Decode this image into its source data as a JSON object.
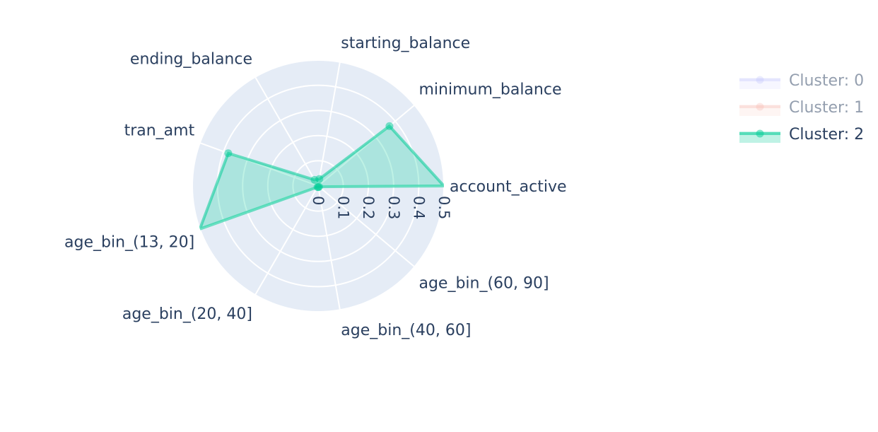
{
  "chart_data": {
    "type": "radar",
    "angular_categories": [
      "account_active",
      "minimum_balance",
      "starting_balance",
      "ending_balance",
      "tran_amt",
      "age_bin_(13, 20]",
      "age_bin_(20, 40]",
      "age_bin_(40, 60]",
      "age_bin_(60, 90]"
    ],
    "radial_range": [
      0,
      0.5
    ],
    "radial_ticks": [
      "0",
      "0.1",
      "0.2",
      "0.3",
      "0.4",
      "0.5"
    ],
    "radial_tick_values": [
      0,
      0.1,
      0.2,
      0.3,
      0.4,
      0.5
    ],
    "grid": true,
    "legend_position": "top-right",
    "series": [
      {
        "name": "Cluster: 0",
        "visible": false,
        "color": "#636efa",
        "values": [
          0.5,
          0.37,
          0.028,
          0.028,
          0.38,
          0.5,
          0.005,
          0.005,
          0.005
        ]
      },
      {
        "name": "Cluster: 1",
        "visible": false,
        "color": "#ef553b",
        "values": [
          0.5,
          0.37,
          0.028,
          0.028,
          0.38,
          0.5,
          0.005,
          0.005,
          0.005
        ]
      },
      {
        "name": "Cluster: 2",
        "visible": true,
        "color": "#00cc96",
        "values": [
          0.5,
          0.37,
          0.028,
          0.028,
          0.38,
          0.5,
          0.005,
          0.005,
          0.005
        ]
      }
    ]
  }
}
